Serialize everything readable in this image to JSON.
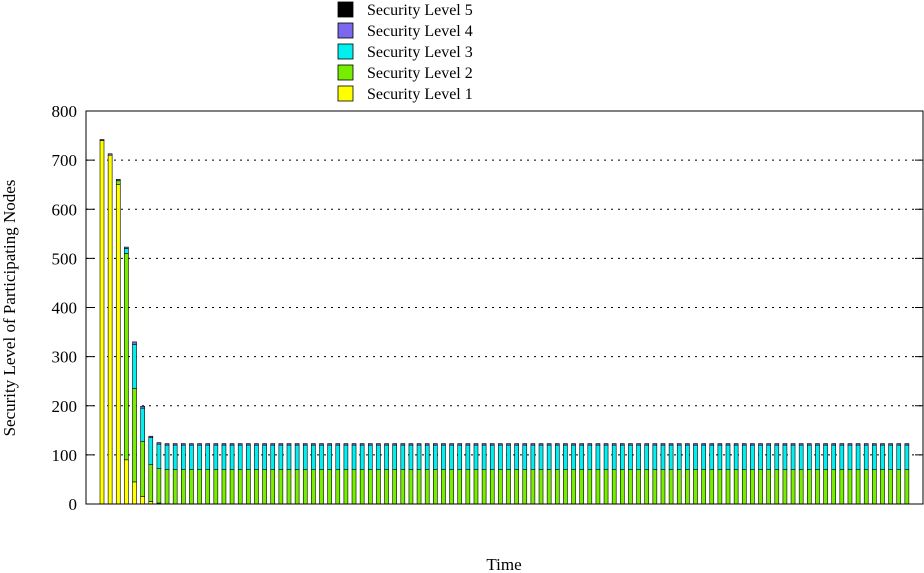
{
  "chart_data": {
    "type": "bar",
    "stacked": true,
    "xlabel": "Time",
    "ylabel": "Security Level of Participating Nodes",
    "ylim": [
      0,
      800
    ],
    "yticks": [
      0,
      100,
      200,
      300,
      400,
      500,
      600,
      700,
      800
    ],
    "grid": "horizontal dotted",
    "legend_position": "top-center",
    "x": [
      1,
      2,
      3,
      4,
      5,
      6,
      7,
      8,
      9,
      10,
      11,
      12,
      13,
      14,
      15,
      16,
      17,
      18,
      19,
      20,
      21,
      22,
      23,
      24,
      25,
      26,
      27,
      28,
      29,
      30,
      31,
      32,
      33,
      34,
      35,
      36,
      37,
      38,
      39,
      40,
      41,
      42,
      43,
      44,
      45,
      46,
      47,
      48,
      49,
      50,
      51,
      52,
      53,
      54,
      55,
      56,
      57,
      58,
      59,
      60,
      61,
      62,
      63,
      64,
      65,
      66,
      67,
      68,
      69,
      70,
      71,
      72,
      73,
      74,
      75,
      76,
      77,
      78,
      79,
      80,
      81,
      82,
      83,
      84,
      85,
      86,
      87,
      88,
      89,
      90,
      91,
      92,
      93,
      94,
      95,
      96,
      97,
      98,
      99,
      100
    ],
    "series": [
      {
        "name": "Security Level 1",
        "color": "#ffff00",
        "values": [
          740,
          710,
          650,
          90,
          45,
          15,
          5,
          2,
          0,
          0,
          0,
          0,
          0,
          0,
          0,
          0,
          0,
          0,
          0,
          0,
          0,
          0,
          0,
          0,
          0,
          0,
          0,
          0,
          0,
          0,
          0,
          0,
          0,
          0,
          0,
          0,
          0,
          0,
          0,
          0,
          0,
          0,
          0,
          0,
          0,
          0,
          0,
          0,
          0,
          0,
          0,
          0,
          0,
          0,
          0,
          0,
          0,
          0,
          0,
          0,
          0,
          0,
          0,
          0,
          0,
          0,
          0,
          0,
          0,
          0,
          0,
          0,
          0,
          0,
          0,
          0,
          0,
          0,
          0,
          0,
          0,
          0,
          0,
          0,
          0,
          0,
          0,
          0,
          0,
          0,
          0,
          0,
          0,
          0,
          0,
          0,
          0,
          0,
          0,
          0
        ]
      },
      {
        "name": "Security Level 2",
        "color": "#77ee00",
        "values": [
          0,
          0,
          8,
          420,
          190,
          112,
          75,
          70,
          70,
          70,
          70,
          70,
          70,
          70,
          70,
          70,
          70,
          70,
          70,
          70,
          70,
          70,
          70,
          70,
          70,
          70,
          70,
          70,
          70,
          70,
          70,
          70,
          70,
          70,
          70,
          70,
          70,
          70,
          70,
          70,
          70,
          70,
          70,
          70,
          70,
          70,
          70,
          70,
          70,
          70,
          70,
          70,
          70,
          70,
          70,
          70,
          70,
          70,
          70,
          70,
          70,
          70,
          70,
          70,
          70,
          70,
          70,
          70,
          70,
          70,
          70,
          70,
          70,
          70,
          70,
          70,
          70,
          70,
          70,
          70,
          70,
          70,
          70,
          70,
          70,
          70,
          70,
          70,
          70,
          70,
          70,
          70,
          70,
          70,
          70,
          70,
          70,
          70,
          70,
          70
        ]
      },
      {
        "name": "Security Level 3",
        "color": "#00f0f0",
        "values": [
          0,
          0,
          0,
          10,
          90,
          68,
          55,
          50,
          50,
          50,
          50,
          50,
          50,
          50,
          50,
          50,
          50,
          50,
          50,
          50,
          50,
          50,
          50,
          50,
          50,
          50,
          50,
          50,
          50,
          50,
          50,
          50,
          50,
          50,
          50,
          50,
          50,
          50,
          50,
          50,
          50,
          50,
          50,
          50,
          50,
          50,
          50,
          50,
          50,
          50,
          50,
          50,
          50,
          50,
          50,
          50,
          50,
          50,
          50,
          50,
          50,
          50,
          50,
          50,
          50,
          50,
          50,
          50,
          50,
          50,
          50,
          50,
          50,
          50,
          50,
          50,
          50,
          50,
          50,
          50,
          50,
          50,
          50,
          50,
          50,
          50,
          50,
          50,
          50,
          50,
          50,
          50,
          50,
          50,
          50,
          50,
          50,
          50,
          50,
          50
        ]
      },
      {
        "name": "Security Level 4",
        "color": "#7b68ee",
        "values": [
          2,
          3,
          3,
          3,
          5,
          4,
          3,
          3,
          3,
          3,
          3,
          3,
          3,
          3,
          3,
          3,
          3,
          3,
          3,
          3,
          3,
          3,
          3,
          3,
          3,
          3,
          3,
          3,
          3,
          3,
          3,
          3,
          3,
          3,
          3,
          3,
          3,
          3,
          3,
          3,
          3,
          3,
          3,
          3,
          3,
          3,
          3,
          3,
          3,
          3,
          3,
          3,
          3,
          3,
          3,
          3,
          3,
          3,
          3,
          3,
          3,
          3,
          3,
          3,
          3,
          3,
          3,
          3,
          3,
          3,
          3,
          3,
          3,
          3,
          3,
          3,
          3,
          3,
          3,
          3,
          3,
          3,
          3,
          3,
          3,
          3,
          3,
          3,
          3,
          3,
          3,
          3,
          3,
          3,
          3,
          3,
          3,
          3,
          3,
          3
        ]
      },
      {
        "name": "Security Level 5",
        "color": "#000000",
        "values": [
          0,
          0,
          0,
          0,
          0,
          0,
          0,
          0,
          0,
          0,
          0,
          0,
          0,
          0,
          0,
          0,
          0,
          0,
          0,
          0,
          0,
          0,
          0,
          0,
          0,
          0,
          0,
          0,
          0,
          0,
          0,
          0,
          0,
          0,
          0,
          0,
          0,
          0,
          0,
          0,
          0,
          0,
          0,
          0,
          0,
          0,
          0,
          0,
          0,
          0,
          0,
          0,
          0,
          0,
          0,
          0,
          0,
          0,
          0,
          0,
          0,
          0,
          0,
          0,
          0,
          0,
          0,
          0,
          0,
          0,
          0,
          0,
          0,
          0,
          0,
          0,
          0,
          0,
          0,
          0,
          0,
          0,
          0,
          0,
          0,
          0,
          0,
          0,
          0,
          0,
          0,
          0,
          0,
          0,
          0,
          0,
          0,
          0,
          0,
          0
        ]
      }
    ]
  }
}
